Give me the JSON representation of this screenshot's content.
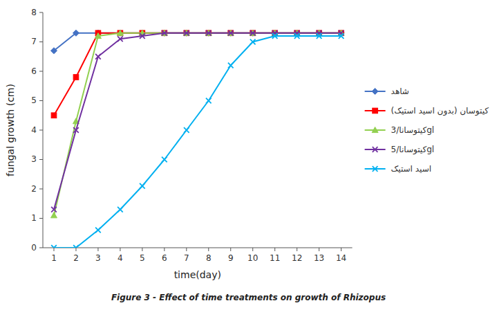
{
  "chart_data": {
    "type": "line",
    "title": "Figure 3 - Effect of time treatments on growth of Rhizopus",
    "x_label": "time(day)",
    "y_label": "fungal growth (cm)",
    "x": [
      1,
      2,
      3,
      4,
      5,
      6,
      7,
      8,
      9,
      10,
      11,
      12,
      13,
      14
    ],
    "series": [
      {
        "name": "شاهد",
        "color": "#4472C4",
        "marker": "diamond",
        "values": [
          6.7,
          7.3,
          7.3,
          7.3,
          7.3,
          7.3,
          7.3,
          7.3,
          7.3,
          7.3,
          7.3,
          7.3,
          7.3,
          7.3
        ]
      },
      {
        "name": "کیتوسان (بدون اسید استیک)",
        "color": "#FF0000",
        "marker": "square",
        "values": [
          4.5,
          5.8,
          7.3,
          7.3,
          7.3,
          7.3,
          7.3,
          7.3,
          7.3,
          7.3,
          7.3,
          7.3,
          7.3,
          7.3
        ]
      },
      {
        "name": "کیتوسانا/3gl",
        "color": "#92D050",
        "marker": "triangle",
        "values": [
          1.1,
          4.3,
          7.2,
          7.3,
          7.3,
          7.3,
          7.3,
          7.3,
          7.3,
          7.3,
          7.3,
          7.3,
          7.3,
          7.3
        ]
      },
      {
        "name": "کیتوسانا/5gl",
        "color": "#7030A0",
        "marker": "x",
        "values": [
          1.3,
          4.0,
          6.5,
          7.1,
          7.2,
          7.3,
          7.3,
          7.3,
          7.3,
          7.3,
          7.3,
          7.3,
          7.3,
          7.3
        ]
      },
      {
        "name": "اسید استیک",
        "color": "#00B0F0",
        "marker": "x",
        "values": [
          0.0,
          0.0,
          0.6,
          1.3,
          2.1,
          3.0,
          4.0,
          5.0,
          6.2,
          7.0,
          7.2,
          7.2,
          7.2,
          7.2
        ]
      }
    ],
    "xlim": [
      0.5,
      14.5
    ],
    "ylim": [
      0,
      8
    ],
    "xticks": [
      1,
      2,
      3,
      4,
      5,
      6,
      7,
      8,
      9,
      10,
      11,
      12,
      13,
      14
    ],
    "yticks": [
      0,
      1,
      2,
      3,
      4,
      5,
      6,
      7,
      8
    ],
    "grid": false,
    "legend": "right"
  }
}
